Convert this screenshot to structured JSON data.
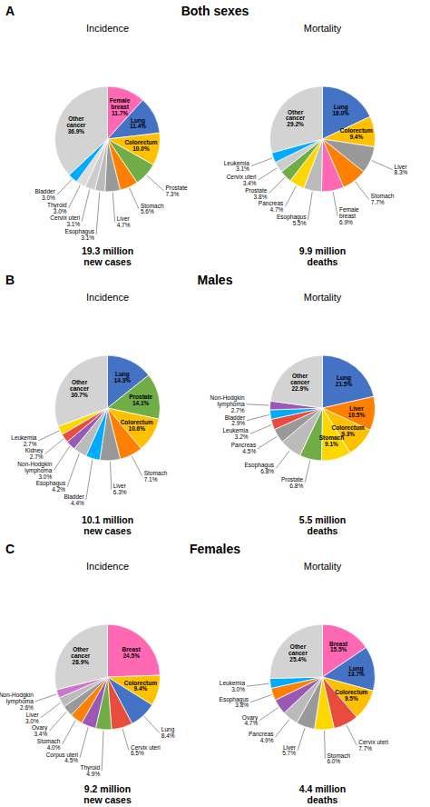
{
  "chart_data": [
    {
      "type": "pie",
      "title": "Incidence",
      "subtitle": "Both sexes",
      "categories": [
        "Female\nbreast",
        "Lung",
        "Colorectum",
        "Prostate",
        "Stomach",
        "Liver",
        "Esophagus",
        "Cervix uteri",
        "Thyroid",
        "Bladder",
        "Other\ncancer"
      ],
      "values": [
        11.7,
        11.4,
        10.0,
        7.3,
        5.6,
        4.7,
        3.1,
        3.1,
        3.0,
        3.0,
        36.9
      ],
      "value_labels": [
        "11.7%",
        "11.4%",
        "10.0%",
        "7.3%",
        "5.6%",
        "4.7%",
        "3.1%",
        "3.1%",
        "3.0%",
        "3.0%",
        "36.9%"
      ],
      "colors": [
        "#FF69B4",
        "#4472C4",
        "#FFC000",
        "#70AD47",
        "#FF8000",
        "#999999",
        "#BBBBBB",
        "#CCCCCC",
        "#DDDDDD",
        "#00AAFF",
        "#D3D3D3"
      ],
      "data_labels": true,
      "annotations": [
        "A",
        "19.3 million\nnew cases"
      ]
    },
    {
      "type": "pie",
      "title": "Mortality",
      "categories": [
        "Lung",
        "Colorectum",
        "Liver",
        "Stomach",
        "Female\nbreast",
        "Esophagus",
        "Pancreas",
        "Prostate",
        "Cervix uteri",
        "Leukemia",
        "Other\ncancer"
      ],
      "values": [
        18.0,
        9.4,
        8.3,
        7.7,
        6.9,
        5.5,
        4.7,
        3.8,
        3.4,
        3.1,
        29.2
      ],
      "value_labels": [
        "18.0%",
        "9.4%",
        "8.3%",
        "7.7%",
        "6.9%",
        "5.5%",
        "4.7%",
        "3.8%",
        "3.4%",
        "3.1%",
        "29.2%"
      ],
      "colors": [
        "#4472C4",
        "#FFC000",
        "#999999",
        "#FF8000",
        "#FF69B4",
        "#BBBBBB",
        "#FFD700",
        "#70AD47",
        "#CCCCCC",
        "#00AAFF",
        "#D3D3D3"
      ],
      "data_labels": true,
      "annotations": [
        "9.9 million\ndeaths"
      ]
    },
    {
      "type": "pie",
      "title": "Incidence",
      "subtitle": "Males",
      "categories": [
        "Lung",
        "Prostate",
        "Colorectum",
        "Stomach",
        "Liver",
        "Bladder",
        "Esophagus",
        "Non-Hodgkin\nlymphoma",
        "Kidney",
        "Leukemia",
        "Other\ncancer"
      ],
      "values": [
        14.3,
        14.1,
        10.6,
        7.1,
        6.3,
        4.4,
        4.2,
        3.0,
        2.7,
        2.7,
        30.7
      ],
      "value_labels": [
        "14.3%",
        "14.1%",
        "10.6%",
        "7.1%",
        "6.3%",
        "4.4%",
        "4.2%",
        "3.0%",
        "2.7%",
        "2.7%",
        "30.7%"
      ],
      "colors": [
        "#4472C4",
        "#70AD47",
        "#FFC000",
        "#FF8000",
        "#999999",
        "#00AAFF",
        "#BBBBBB",
        "#9B59B6",
        "#E74C3C",
        "#FFD700",
        "#D3D3D3"
      ],
      "data_labels": true,
      "annotations": [
        "B",
        "10.1 million\nnew cases"
      ]
    },
    {
      "type": "pie",
      "title": "Mortality",
      "categories": [
        "Lung",
        "Liver",
        "Colorectum",
        "Stomach",
        "Prostate",
        "Esophagus",
        "Pancreas",
        "Leukemia",
        "Bladder",
        "Non-Hodgkin\nlymphoma",
        "Other\ncancer"
      ],
      "values": [
        21.5,
        10.5,
        9.3,
        9.1,
        6.8,
        6.8,
        4.5,
        3.2,
        2.9,
        2.7,
        22.9
      ],
      "value_labels": [
        "21.5%",
        "10.5%",
        "9.3%",
        "9.1%",
        "6.8%",
        "6.8%",
        "4.5%",
        "3.2%",
        "2.9%",
        "2.7%",
        "22.9%"
      ],
      "colors": [
        "#4472C4",
        "#FF8000",
        "#FFC000",
        "#FFD700",
        "#70AD47",
        "#BBBBBB",
        "#999999",
        "#E74C3C",
        "#00AAFF",
        "#9B59B6",
        "#D3D3D3"
      ],
      "data_labels": true,
      "annotations": [
        "5.5 million\ndeaths"
      ]
    },
    {
      "type": "pie",
      "title": "Incidence",
      "subtitle": "Females",
      "categories": [
        "Breast",
        "Colorectum",
        "Lung",
        "Cervix uteri",
        "Thyroid",
        "Corpus uteri",
        "Stomach",
        "Ovary",
        "Liver",
        "Non-Hodgkin\nlymphoma",
        "Other\ncancer"
      ],
      "values": [
        24.5,
        9.4,
        8.4,
        6.5,
        4.9,
        4.5,
        4.0,
        3.4,
        3.0,
        2.6,
        28.9
      ],
      "value_labels": [
        "24.5%",
        "9.4%",
        "8.4%",
        "6.5%",
        "4.9%",
        "4.5%",
        "4.0%",
        "3.4%",
        "3.0%",
        "2.6%",
        "28.9%"
      ],
      "colors": [
        "#FF69B4",
        "#FFC000",
        "#4472C4",
        "#E74C3C",
        "#70AD47",
        "#9B59B6",
        "#FF8000",
        "#999999",
        "#BBBBBB",
        "#CC77CC",
        "#D3D3D3"
      ],
      "data_labels": true,
      "annotations": [
        "C",
        "9.2 million\nnew cases"
      ]
    },
    {
      "type": "pie",
      "title": "Mortality",
      "categories": [
        "Breast",
        "Lung",
        "Colorectum",
        "Cervix uteri",
        "Stomach",
        "Liver",
        "Pancreas",
        "Ovary",
        "Esophagus",
        "Leukemia",
        "Other\ncancer"
      ],
      "values": [
        15.5,
        13.7,
        9.5,
        7.7,
        6.0,
        5.7,
        4.9,
        4.7,
        3.8,
        3.0,
        25.4
      ],
      "value_labels": [
        "15.5%",
        "13.7%",
        "9.5%",
        "7.7%",
        "6.0%",
        "5.7%",
        "4.9%",
        "4.7%",
        "3.8%",
        "3.0%",
        "25.4%"
      ],
      "colors": [
        "#FF69B4",
        "#4472C4",
        "#FFC000",
        "#E74C3C",
        "#FFD700",
        "#999999",
        "#BBBBBB",
        "#9B59B6",
        "#FF8000",
        "#00AAFF",
        "#D3D3D3"
      ],
      "data_labels": true,
      "annotations": [
        "4.4 million\ndeaths"
      ]
    }
  ]
}
